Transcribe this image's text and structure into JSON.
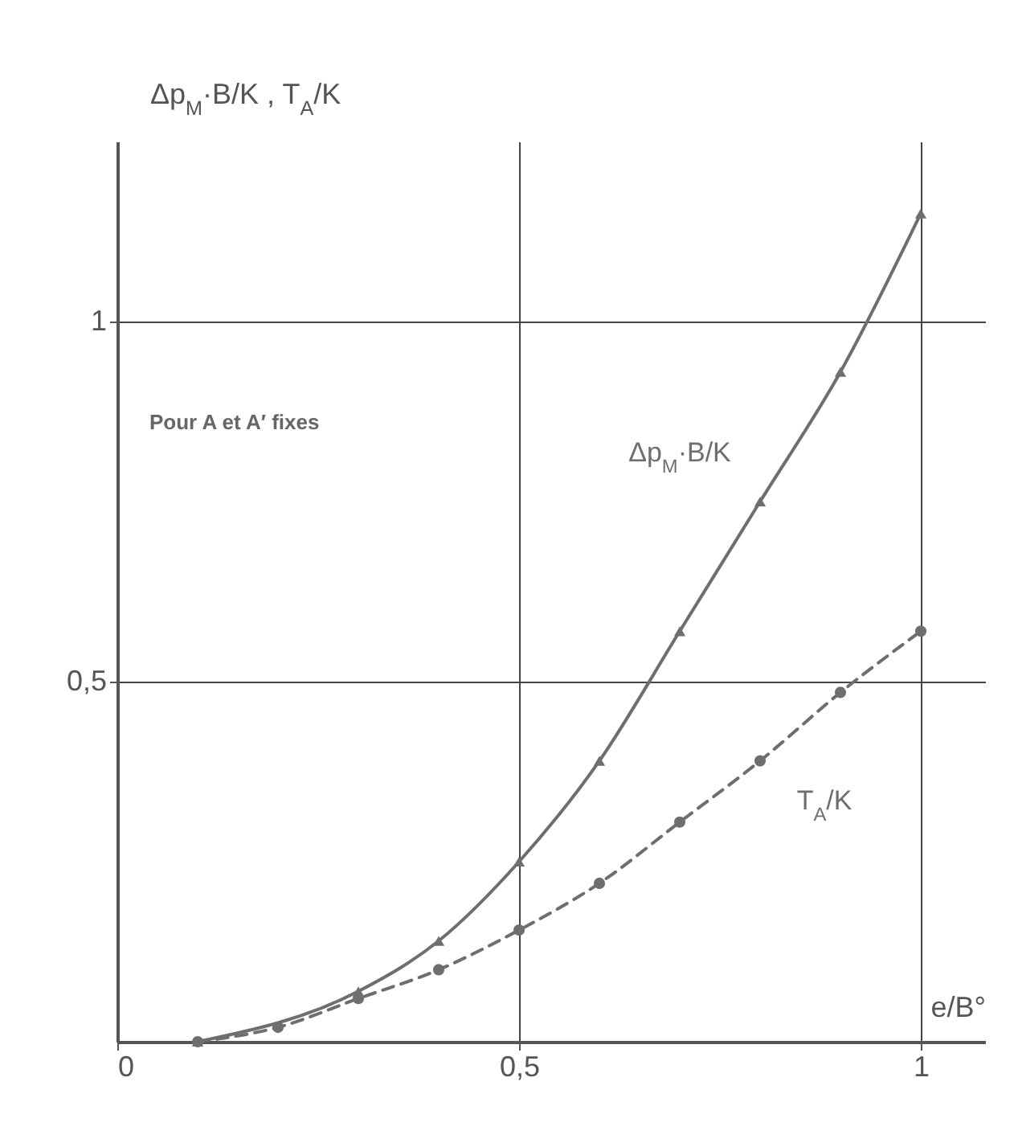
{
  "chart_data": {
    "type": "line",
    "xlabel": "e/B°",
    "ylabel": "Δp$_{M}$·B/K , T$_{A}$/K",
    "x": [
      0.1,
      0.2,
      0.3,
      0.4,
      0.5,
      0.6,
      0.7,
      0.8,
      0.9,
      1.0
    ],
    "series": [
      {
        "name": "Δp$_{M}$·B/K",
        "color": "#6e6e6e",
        "marker": "triangle",
        "line_style": "solid",
        "values": [
          0.0,
          null,
          0.07,
          0.14,
          0.25,
          0.39,
          0.57,
          0.75,
          0.93,
          1.15
        ]
      },
      {
        "name": "T$_{A}$/K",
        "color": "#6e6e6e",
        "marker": "circle",
        "line_style": "dashed",
        "values": [
          0.0,
          0.02,
          0.06,
          0.1,
          0.155,
          0.22,
          0.305,
          0.39,
          0.485,
          0.57
        ]
      }
    ],
    "xlim": [
      0,
      1.08
    ],
    "ylim": [
      0,
      1.25
    ],
    "xticks": [
      0,
      {
        "value": 0.5,
        "label": "0,5"
      },
      1
    ],
    "yticks": [
      {
        "value": 0.5,
        "label": "0,5"
      },
      1
    ],
    "grid": true,
    "annotations": [
      "Pour A et A′ fixes"
    ]
  }
}
